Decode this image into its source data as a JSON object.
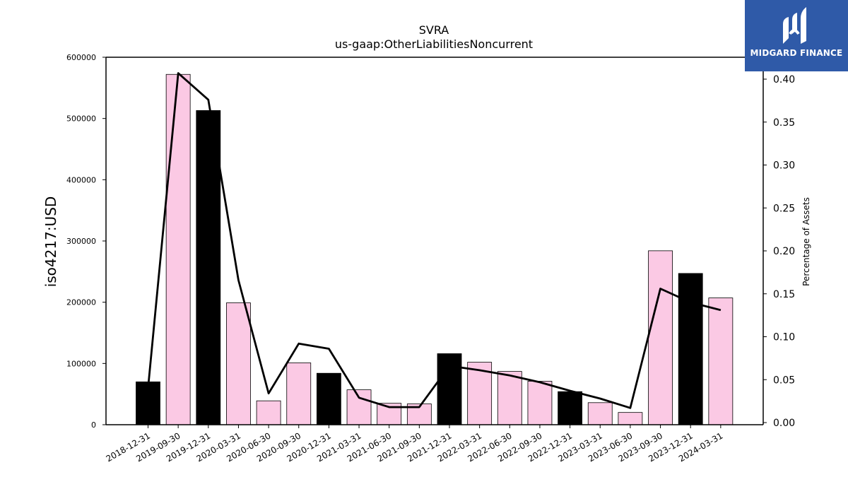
{
  "chart_data": {
    "type": "bar",
    "title": "SVRA",
    "subtitle": "us-gaap:OtherLiabilitiesNoncurrent",
    "ylabel": "iso4217:USD",
    "y2label": "Percentage of Assets",
    "ylim": [
      0,
      600000
    ],
    "y2lim": [
      0,
      0.43
    ],
    "yticks": [
      "0",
      "100000",
      "200000",
      "300000",
      "400000",
      "500000",
      "600000"
    ],
    "y2ticks": [
      "0.00",
      "0.05",
      "0.10",
      "0.15",
      "0.20",
      "0.25",
      "0.30",
      "0.35",
      "0.40"
    ],
    "categories": [
      "2018-12-31",
      "2019-09-30",
      "2019-12-31",
      "2020-03-31",
      "2020-06-30",
      "2020-09-30",
      "2020-12-31",
      "2021-03-31",
      "2021-06-30",
      "2021-09-30",
      "2021-12-31",
      "2022-03-31",
      "2022-06-30",
      "2022-09-30",
      "2022-12-31",
      "2023-03-31",
      "2023-06-30",
      "2023-09-30",
      "2023-12-31",
      "2024-03-31"
    ],
    "values": [
      70000,
      572000,
      513000,
      199000,
      39000,
      101000,
      84000,
      57000,
      35000,
      34000,
      116000,
      102000,
      87000,
      71000,
      54000,
      36000,
      20000,
      284000,
      247000,
      207000
    ],
    "bar_colors": [
      "#000000",
      "#fbc9e4",
      "#000000",
      "#fbc9e4",
      "#fbc9e4",
      "#fbc9e4",
      "#000000",
      "#fbc9e4",
      "#fbc9e4",
      "#fbc9e4",
      "#000000",
      "#fbc9e4",
      "#fbc9e4",
      "#fbc9e4",
      "#000000",
      "#fbc9e4",
      "#fbc9e4",
      "#fbc9e4",
      "#000000",
      "#fbc9e4"
    ],
    "line_values": [
      0.04,
      0.407,
      0.376,
      0.166,
      0.034,
      0.092,
      0.086,
      0.029,
      0.018,
      0.018,
      0.066,
      0.061,
      0.055,
      0.047,
      0.037,
      0.028,
      0.017,
      0.156,
      0.14,
      0.131
    ],
    "grid": false
  },
  "logo": {
    "text": "MIDGARD FINANCE",
    "bg_color": "#2f5aa8"
  }
}
